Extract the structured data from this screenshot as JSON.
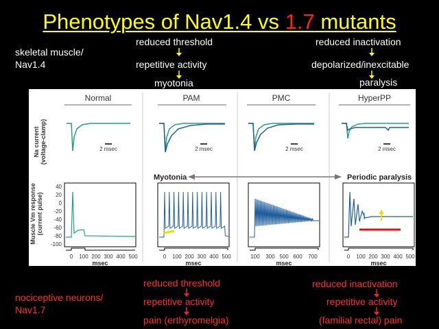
{
  "title": {
    "part1": "Phenotypes of Nav1.4 vs ",
    "part2": "1.7",
    "part3": " mutants"
  },
  "colors": {
    "title": "#ffff00",
    "red": "#ff2020",
    "trace_green": "#1fa37a",
    "trace_blue": "#1f5e9c"
  },
  "left_top": {
    "line1": "skeletal muscle/",
    "line2": "Nav1.4"
  },
  "left_bottom": {
    "line1": "nociceptive neurons/",
    "line2": "Nav1.7"
  },
  "col1_top": {
    "a": "reduced threshold",
    "b": "repetitive activity",
    "c": "myotonia"
  },
  "col2_top": {
    "a": "reduced inactivation",
    "b": "depolarized/inexcitable",
    "c": "paralysis"
  },
  "col1_bottom": {
    "a": "reduced threshold",
    "b": "repetitive activity",
    "c": "pain (erthyromelgia)"
  },
  "col2_bottom": {
    "a": "reduced inactivation",
    "b": "repetitive activity",
    "c": "(familial rectal) pain"
  },
  "figure": {
    "panels": [
      "Normal",
      "PAM",
      "PMC",
      "HyperPP"
    ],
    "ylabel_top": "Na current\n(voltage-clamp)",
    "scale_bar": "2 msec",
    "myotonia": "Myotonia",
    "periodic_paralysis": "Periodic paralysis",
    "ylabel_bottom": "Muscle Vm response\n(current pulse)",
    "yticks": [
      "40",
      "20",
      "0",
      "-20",
      "-40",
      "-60",
      "-80",
      "-100"
    ],
    "xticks_a": [
      "0",
      "100",
      "200",
      "300",
      "400",
      "500"
    ],
    "xticks_b": [
      "0",
      "100",
      "200",
      "300",
      "400",
      "500"
    ],
    "xticks_c": [
      "100",
      "300",
      "500",
      "600",
      "700"
    ],
    "xticks_d": [
      "0",
      "100",
      "200",
      "300",
      "400",
      "500"
    ],
    "xlabel": "msec"
  }
}
